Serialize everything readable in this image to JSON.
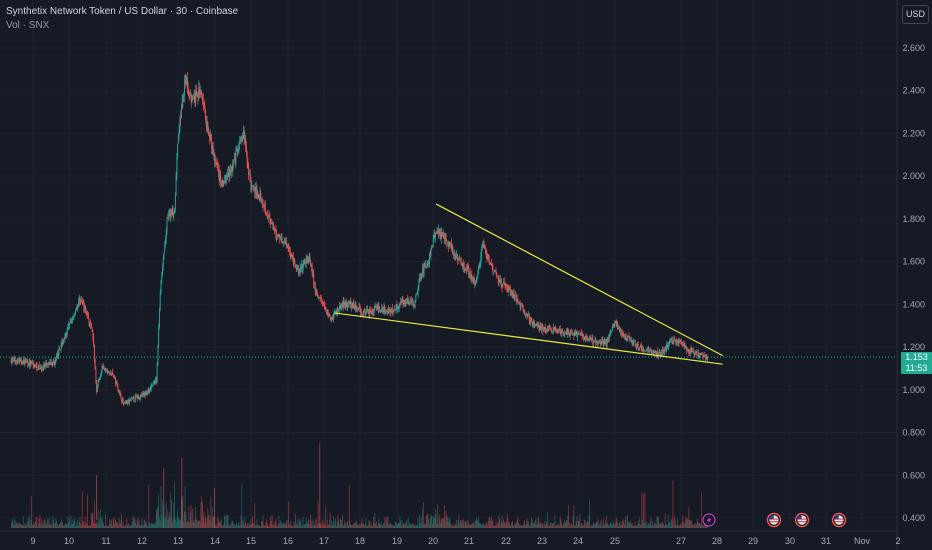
{
  "header": {
    "title": "Synthetix Network Token / US Dollar · 30 · Coinbase",
    "volume_label": "Vol · SNX"
  },
  "currency_button": "USD",
  "price_badge": {
    "price": "1.153",
    "countdown": "11:53"
  },
  "colors": {
    "background": "#161a25",
    "grid": "#1f2330",
    "up": "#26a69a",
    "down": "#ef5350",
    "trendline": "#e8e83f",
    "price_line": "#22ab94"
  },
  "icons": [
    "lightning-event-icon",
    "us-flag-event-icon",
    "us-flag-event-icon",
    "us-flag-event-icon"
  ],
  "chart_data": {
    "type": "candlestick",
    "title": "Synthetix Network Token / US Dollar · 30 · Coinbase",
    "xlabel": "",
    "ylabel": "",
    "y_ticks": [
      "2.600",
      "2.400",
      "2.200",
      "2.000",
      "1.800",
      "1.600",
      "1.400",
      "1.200",
      "1.000",
      "0.800",
      "0.600",
      "0.400"
    ],
    "x_ticks": [
      "9",
      "10",
      "11",
      "12",
      "13",
      "14",
      "15",
      "16",
      "17",
      "18",
      "19",
      "20",
      "21",
      "22",
      "23",
      "24",
      "25",
      "27",
      "28",
      "29",
      "30",
      "31",
      "Nov",
      "2"
    ],
    "ylim": [
      0.37,
      2.73
    ],
    "last_price": 1.153,
    "grid": true,
    "close_path": [
      {
        "day": 8.4,
        "price": 1.14
      },
      {
        "day": 8.8,
        "price": 1.13
      },
      {
        "day": 9.2,
        "price": 1.1
      },
      {
        "day": 9.6,
        "price": 1.13
      },
      {
        "day": 9.8,
        "price": 1.22
      },
      {
        "day": 10.0,
        "price": 1.3
      },
      {
        "day": 10.3,
        "price": 1.43
      },
      {
        "day": 10.5,
        "price": 1.35
      },
      {
        "day": 10.65,
        "price": 1.25
      },
      {
        "day": 10.75,
        "price": 1.0
      },
      {
        "day": 10.9,
        "price": 1.1
      },
      {
        "day": 11.2,
        "price": 1.07
      },
      {
        "day": 11.5,
        "price": 0.93
      },
      {
        "day": 11.8,
        "price": 0.96
      },
      {
        "day": 12.1,
        "price": 0.98
      },
      {
        "day": 12.4,
        "price": 1.05
      },
      {
        "day": 12.5,
        "price": 1.45
      },
      {
        "day": 12.7,
        "price": 1.8
      },
      {
        "day": 12.9,
        "price": 1.85
      },
      {
        "day": 13.0,
        "price": 2.2
      },
      {
        "day": 13.2,
        "price": 2.45
      },
      {
        "day": 13.4,
        "price": 2.35
      },
      {
        "day": 13.6,
        "price": 2.4
      },
      {
        "day": 13.9,
        "price": 2.15
      },
      {
        "day": 14.2,
        "price": 1.95
      },
      {
        "day": 14.5,
        "price": 2.05
      },
      {
        "day": 14.8,
        "price": 2.2
      },
      {
        "day": 15.0,
        "price": 1.95
      },
      {
        "day": 15.3,
        "price": 1.9
      },
      {
        "day": 15.6,
        "price": 1.75
      },
      {
        "day": 16.0,
        "price": 1.68
      },
      {
        "day": 16.3,
        "price": 1.55
      },
      {
        "day": 16.6,
        "price": 1.62
      },
      {
        "day": 16.8,
        "price": 1.45
      },
      {
        "day": 17.0,
        "price": 1.4
      },
      {
        "day": 17.2,
        "price": 1.33
      },
      {
        "day": 17.5,
        "price": 1.4
      },
      {
        "day": 17.8,
        "price": 1.4
      },
      {
        "day": 18.1,
        "price": 1.36
      },
      {
        "day": 18.5,
        "price": 1.38
      },
      {
        "day": 18.9,
        "price": 1.37
      },
      {
        "day": 19.2,
        "price": 1.42
      },
      {
        "day": 19.5,
        "price": 1.4
      },
      {
        "day": 19.7,
        "price": 1.55
      },
      {
        "day": 19.9,
        "price": 1.6
      },
      {
        "day": 20.1,
        "price": 1.75
      },
      {
        "day": 20.4,
        "price": 1.7
      },
      {
        "day": 20.7,
        "price": 1.62
      },
      {
        "day": 21.0,
        "price": 1.55
      },
      {
        "day": 21.2,
        "price": 1.5
      },
      {
        "day": 21.4,
        "price": 1.68
      },
      {
        "day": 21.6,
        "price": 1.58
      },
      {
        "day": 21.9,
        "price": 1.5
      },
      {
        "day": 22.2,
        "price": 1.45
      },
      {
        "day": 22.5,
        "price": 1.38
      },
      {
        "day": 22.8,
        "price": 1.3
      },
      {
        "day": 23.2,
        "price": 1.28
      },
      {
        "day": 23.6,
        "price": 1.27
      },
      {
        "day": 24.0,
        "price": 1.26
      },
      {
        "day": 24.4,
        "price": 1.23
      },
      {
        "day": 24.8,
        "price": 1.22
      },
      {
        "day": 25.0,
        "price": 1.32
      },
      {
        "day": 25.3,
        "price": 1.25
      },
      {
        "day": 25.7,
        "price": 1.2
      },
      {
        "day": 26.0,
        "price": 1.18
      },
      {
        "day": 26.3,
        "price": 1.17
      },
      {
        "day": 26.6,
        "price": 1.23
      },
      {
        "day": 26.9,
        "price": 1.21
      },
      {
        "day": 27.1,
        "price": 1.18
      },
      {
        "day": 27.4,
        "price": 1.16
      },
      {
        "day": 27.6,
        "price": 1.153
      }
    ],
    "upper_trendline": [
      {
        "day": 20.1,
        "price": 1.87
      },
      {
        "day": 28.0,
        "price": 1.16
      }
    ],
    "lower_trendline": [
      {
        "day": 17.3,
        "price": 1.36
      },
      {
        "day": 28.0,
        "price": 1.12
      }
    ]
  }
}
